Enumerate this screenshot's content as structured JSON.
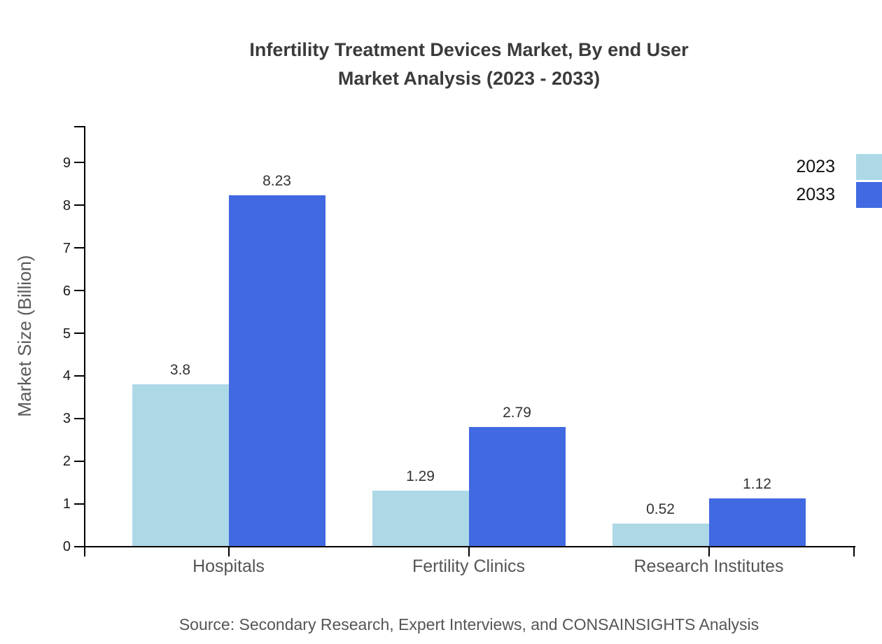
{
  "title": {
    "line1": "Infertility Treatment Devices Market, By end User",
    "line2": "Market Analysis (2023 - 2033)"
  },
  "chart_data": {
    "type": "bar",
    "categories": [
      "Hospitals",
      "Fertility Clinics",
      "Research Institutes"
    ],
    "series": [
      {
        "name": "2023",
        "color": "#ADD8E6",
        "values": [
          3.8,
          1.29,
          0.52
        ],
        "labels": [
          "3.8",
          "1.29",
          "0.52"
        ]
      },
      {
        "name": "2033",
        "color": "#4169E1",
        "values": [
          8.23,
          2.79,
          1.12
        ],
        "labels": [
          "8.23",
          "2.79",
          "1.12"
        ]
      }
    ],
    "title": "Infertility Treatment Devices Market, By end User Market Analysis (2023 - 2033)",
    "xlabel": "",
    "ylabel": "Market Size (Billion)",
    "yticks": [
      0,
      1,
      2,
      3,
      4,
      5,
      6,
      7,
      8,
      9
    ],
    "ylim": [
      0,
      9.85
    ],
    "grid": false,
    "legend_position": "top-right",
    "axis_color": "#000000"
  },
  "source": "Source: Secondary Research, Expert Interviews, and CONSAINSIGHTS Analysis"
}
